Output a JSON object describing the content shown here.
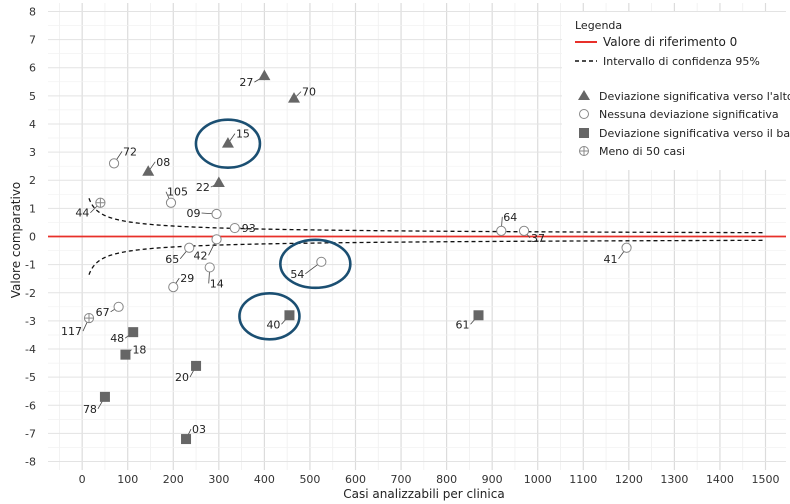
{
  "chart_data": {
    "type": "scatter",
    "xlabel": "Casi analizzabili per clinica",
    "ylabel": "Valore comparativo",
    "xlim": [
      -75,
      1545
    ],
    "ylim": [
      -8.3,
      8.3
    ],
    "x_ticks": [
      0,
      100,
      200,
      300,
      400,
      500,
      600,
      700,
      800,
      900,
      1000,
      1100,
      1200,
      1300,
      1400,
      1500
    ],
    "y_ticks": [
      -8,
      -7,
      -6,
      -5,
      -4,
      -3,
      -2,
      -1,
      0,
      1,
      2,
      3,
      4,
      5,
      6,
      7,
      8
    ],
    "grid": true,
    "legend": {
      "title": "Legenda",
      "position": "top-right",
      "lines": [
        {
          "label": "Valore di riferimento 0",
          "color": "#e8302a",
          "style": "solid"
        },
        {
          "label": "Intervallo di confidenza 95%",
          "color": "#111111",
          "style": "dashed"
        }
      ],
      "markers": [
        {
          "label": "Deviazione significativa verso l'alto",
          "shape": "triangle"
        },
        {
          "label": "Nessuna deviazione significativa",
          "shape": "circle"
        },
        {
          "label": "Deviazione significativa verso il basso",
          "shape": "square"
        },
        {
          "label": "Meno di 50 casi",
          "shape": "crossed-circle"
        }
      ]
    },
    "reference_line": {
      "y": 0,
      "color": "#e8302a"
    },
    "confidence_band": {
      "formula": "y = ±1.959964 * sqrt(2) * 1.9 / sqrt(x)",
      "x_range": [
        15,
        1500
      ],
      "color": "#111111"
    },
    "series": [
      {
        "name": "Deviazione significativa verso l'alto",
        "shape": "triangle",
        "color": "#666666",
        "points": [
          {
            "id": "27",
            "x": 400,
            "y": 5.7
          },
          {
            "id": "70",
            "x": 465,
            "y": 4.9
          },
          {
            "id": "15",
            "x": 320,
            "y": 3.3
          },
          {
            "id": "08",
            "x": 145,
            "y": 2.3
          },
          {
            "id": "22",
            "x": 300,
            "y": 1.9
          }
        ]
      },
      {
        "name": "Nessuna deviazione significativa",
        "shape": "circle",
        "color": "#888888",
        "points": [
          {
            "id": "72",
            "x": 70,
            "y": 2.6
          },
          {
            "id": "105",
            "x": 195,
            "y": 1.2
          },
          {
            "id": "09",
            "x": 295,
            "y": 0.8
          },
          {
            "id": "93",
            "x": 335,
            "y": 0.3
          },
          {
            "id": "42",
            "x": 295,
            "y": -0.1
          },
          {
            "id": "65",
            "x": 235,
            "y": -0.4
          },
          {
            "id": "14",
            "x": 280,
            "y": -1.1
          },
          {
            "id": "29",
            "x": 200,
            "y": -1.8
          },
          {
            "id": "67",
            "x": 80,
            "y": -2.5
          },
          {
            "id": "54",
            "x": 525,
            "y": -0.9
          },
          {
            "id": "64",
            "x": 920,
            "y": 0.2
          },
          {
            "id": "37",
            "x": 970,
            "y": 0.2
          },
          {
            "id": "41",
            "x": 1195,
            "y": -0.4
          }
        ]
      },
      {
        "name": "Deviazione significativa verso il basso",
        "shape": "square",
        "color": "#666666",
        "points": [
          {
            "id": "40",
            "x": 455,
            "y": -2.8
          },
          {
            "id": "61",
            "x": 870,
            "y": -2.8
          },
          {
            "id": "48",
            "x": 112,
            "y": -3.4
          },
          {
            "id": "18",
            "x": 95,
            "y": -4.2
          },
          {
            "id": "20",
            "x": 250,
            "y": -4.6
          },
          {
            "id": "78",
            "x": 50,
            "y": -5.7
          },
          {
            "id": "03",
            "x": 228,
            "y": -7.2
          }
        ]
      },
      {
        "name": "Meno di 50 casi",
        "shape": "crossed-circle",
        "color": "#888888",
        "points": [
          {
            "id": "44",
            "x": 40,
            "y": 1.2
          },
          {
            "id": "117",
            "x": 15,
            "y": -2.9
          }
        ]
      }
    ],
    "highlight_ellipses": [
      {
        "target": "15",
        "color": "#1b4f72"
      },
      {
        "target": "54",
        "color": "#1b4f72"
      },
      {
        "target": "40",
        "color": "#1b4f72"
      }
    ]
  }
}
